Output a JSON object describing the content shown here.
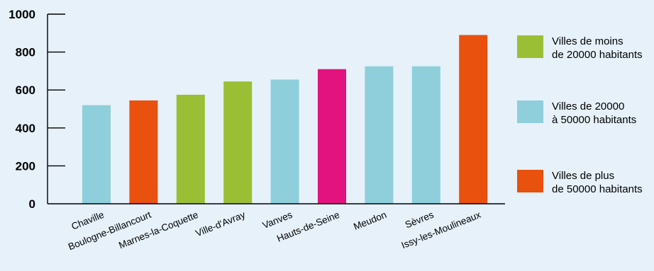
{
  "chart_data": {
    "type": "bar",
    "categories": [
      "Chaville",
      "Boulogne-Billancourt",
      "Marnes-la-Coquette",
      "Ville-d'Avray",
      "Vanves",
      "Hauts-de-Seine",
      "Meudon",
      "Sèvres",
      "Issy-les-Moulineaux"
    ],
    "values": [
      520,
      545,
      575,
      645,
      655,
      710,
      725,
      725,
      890
    ],
    "bar_colors": [
      "#8ecfdb",
      "#e8510e",
      "#9abf34",
      "#9abf34",
      "#8ecfdb",
      "#e2127e",
      "#8ecfdb",
      "#8ecfdb",
      "#e8510e"
    ],
    "ylim": [
      0,
      1000
    ],
    "yticks": [
      0,
      200,
      400,
      600,
      800,
      1000
    ],
    "grid": false,
    "legend_position": "right",
    "legend": [
      {
        "label_line1": "Villes de moins",
        "label_line2": "de 20000 habitants",
        "color": "#9abf34"
      },
      {
        "label_line1": "Villes de 20000",
        "label_line2": "à 50000 habitants",
        "color": "#8ecfdb"
      },
      {
        "label_line1": "Villes de plus",
        "label_line2": "de 50000 habitants",
        "color": "#e8510e"
      }
    ]
  }
}
